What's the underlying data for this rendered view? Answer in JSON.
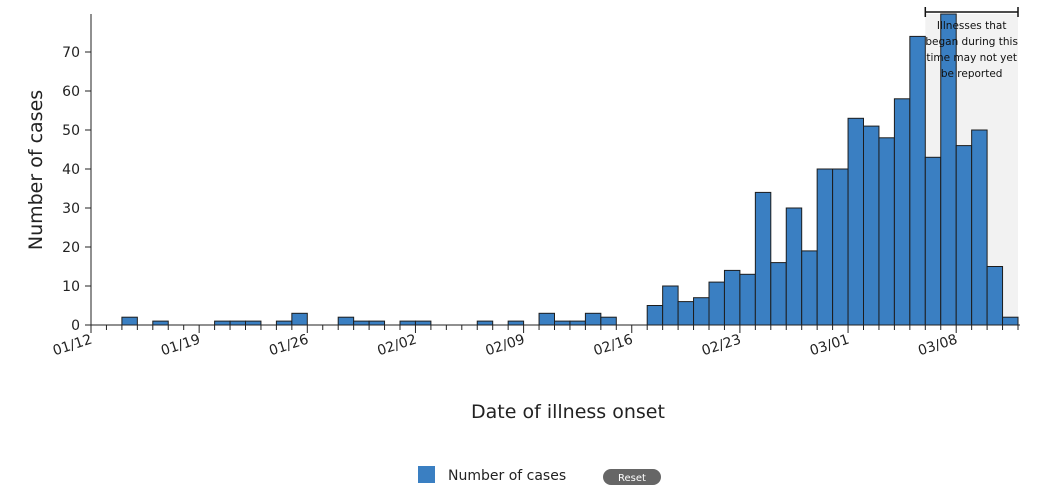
{
  "chart_data": {
    "type": "bar",
    "xlabel": "Date of illness onset",
    "ylabel": "Number of cases",
    "ylim": [
      0,
      80
    ],
    "yticks": [
      0,
      10,
      20,
      30,
      40,
      50,
      60,
      70
    ],
    "start_date": "01/12",
    "date_ticks": [
      "01/12",
      "01/19",
      "01/26",
      "02/02",
      "02/09",
      "02/16",
      "02/23",
      "03/01",
      "03/08"
    ],
    "series": [
      {
        "name": "Number of cases",
        "color": "#3a7fc2",
        "values": [
          0,
          0,
          2,
          0,
          1,
          0,
          0,
          0,
          1,
          1,
          1,
          0,
          1,
          3,
          0,
          0,
          2,
          1,
          1,
          0,
          1,
          1,
          0,
          0,
          0,
          1,
          0,
          1,
          0,
          3,
          1,
          1,
          3,
          2,
          0,
          0,
          5,
          10,
          6,
          7,
          11,
          14,
          13,
          34,
          16,
          30,
          19,
          40,
          40,
          53,
          51,
          48,
          58,
          74,
          43,
          80,
          46,
          50,
          15,
          2
        ]
      }
    ],
    "annotation": {
      "text_lines": [
        "Illnesses that",
        "began during this",
        "time may not yet",
        "be reported"
      ],
      "start_index": 54,
      "end_index": 60,
      "shade_color": "#f2f2f2"
    },
    "legend": {
      "label": "Number of cases",
      "position": "bottom-center",
      "reset_label": "Reset"
    }
  }
}
